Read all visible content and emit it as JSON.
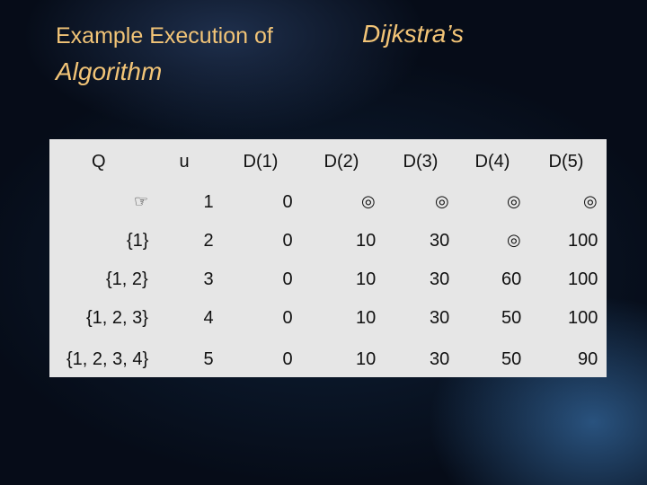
{
  "title": {
    "lead": "Example Execution of",
    "name": "Dijkstra’s",
    "rest": "Algorithm"
  },
  "table": {
    "header": [
      "Q",
      "u",
      "D(1)",
      "D(2)",
      "D(3)",
      "D(4)",
      "D(5)"
    ],
    "rows": [
      [
        "☞",
        "1",
        "0",
        "◎",
        "◎",
        "◎",
        "◎"
      ],
      [
        "{1}",
        "2",
        "0",
        "10",
        "30",
        "◎",
        "100"
      ],
      [
        "{1, 2}",
        "3",
        "0",
        "10",
        "30",
        "60",
        "100"
      ],
      [
        "{1, 2, 3}",
        "4",
        "0",
        "10",
        "30",
        "50",
        "100"
      ],
      [
        "{1, 2, 3, 4}",
        "5",
        "0",
        "10",
        "30",
        "50",
        "90"
      ]
    ]
  }
}
